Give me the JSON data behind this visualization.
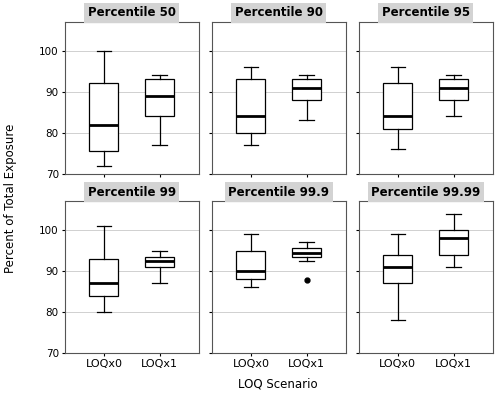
{
  "panels": [
    {
      "title": "Percentile 50",
      "LOQx0": {
        "whislo": 72,
        "q1": 75.5,
        "median": 82,
        "q3": 92,
        "whishi": 100,
        "fliers": []
      },
      "LOQx1": {
        "whislo": 77,
        "q1": 84,
        "median": 89,
        "q3": 93,
        "whishi": 94,
        "fliers": []
      }
    },
    {
      "title": "Percentile 90",
      "LOQx0": {
        "whislo": 77,
        "q1": 80,
        "median": 84,
        "q3": 93,
        "whishi": 96,
        "fliers": []
      },
      "LOQx1": {
        "whislo": 83,
        "q1": 88,
        "median": 91,
        "q3": 93,
        "whishi": 94,
        "fliers": []
      }
    },
    {
      "title": "Percentile 95",
      "LOQx0": {
        "whislo": 76,
        "q1": 81,
        "median": 84,
        "q3": 92,
        "whishi": 96,
        "fliers": []
      },
      "LOQx1": {
        "whislo": 84,
        "q1": 88,
        "median": 91,
        "q3": 93,
        "whishi": 94,
        "fliers": []
      }
    },
    {
      "title": "Percentile 99",
      "LOQx0": {
        "whislo": 80,
        "q1": 84,
        "median": 87,
        "q3": 93,
        "whishi": 101,
        "fliers": []
      },
      "LOQx1": {
        "whislo": 87,
        "q1": 91,
        "median": 92.5,
        "q3": 93.5,
        "whishi": 95,
        "fliers": []
      }
    },
    {
      "title": "Percentile 99.9",
      "LOQx0": {
        "whislo": 86,
        "q1": 88,
        "median": 90,
        "q3": 95,
        "whishi": 99,
        "fliers": []
      },
      "LOQx1": {
        "whislo": 92.5,
        "q1": 93.5,
        "median": 94.5,
        "q3": 95.5,
        "whishi": 97,
        "fliers": [
          87.7
        ]
      }
    },
    {
      "title": "Percentile 99.99",
      "LOQx0": {
        "whislo": 78,
        "q1": 87,
        "median": 91,
        "q3": 94,
        "whishi": 99,
        "fliers": []
      },
      "LOQx1": {
        "whislo": 91,
        "q1": 94,
        "median": 98,
        "q3": 100,
        "whishi": 104,
        "fliers": []
      }
    }
  ],
  "ylim": [
    70,
    107
  ],
  "yticks": [
    70,
    80,
    90,
    100
  ],
  "xlabel": "LOQ Scenario",
  "ylabel": "Percent of Total Exposure",
  "xticklabels": [
    "LOQx0",
    "LOQx1"
  ],
  "background_color": "#ffffff",
  "panel_title_bg": "#d3d3d3",
  "grid_color": "#d0d0d0",
  "box_facecolor": "#ffffff",
  "box_edgecolor": "#000000",
  "median_color": "#000000",
  "whisker_color": "#000000",
  "flier_color": "#000000"
}
